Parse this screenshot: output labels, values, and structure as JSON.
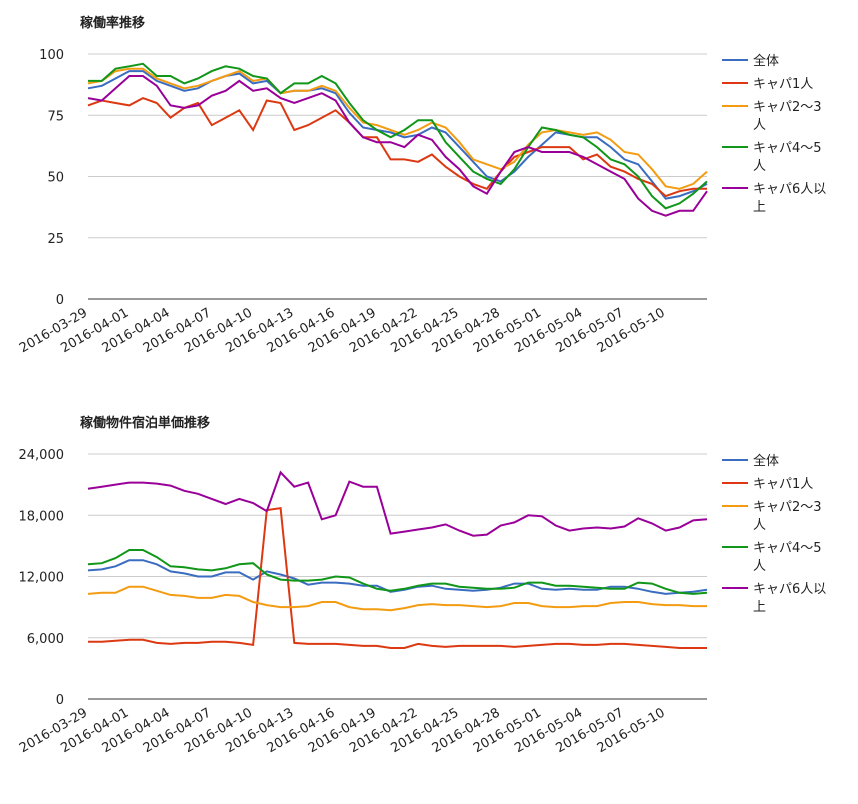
{
  "chart_data": [
    {
      "type": "line",
      "title": "稼働率推移",
      "x": [
        "2016-03-29",
        "2016-03-30",
        "2016-03-31",
        "2016-04-01",
        "2016-04-02",
        "2016-04-03",
        "2016-04-04",
        "2016-04-05",
        "2016-04-06",
        "2016-04-07",
        "2016-04-08",
        "2016-04-09",
        "2016-04-10",
        "2016-04-11",
        "2016-04-12",
        "2016-04-13",
        "2016-04-14",
        "2016-04-15",
        "2016-04-16",
        "2016-04-17",
        "2016-04-18",
        "2016-04-19",
        "2016-04-20",
        "2016-04-21",
        "2016-04-22",
        "2016-04-23",
        "2016-04-24",
        "2016-04-25",
        "2016-04-26",
        "2016-04-27",
        "2016-04-28",
        "2016-04-29",
        "2016-04-30",
        "2016-05-01",
        "2016-05-02",
        "2016-05-03",
        "2016-05-04",
        "2016-05-05",
        "2016-05-06",
        "2016-05-07",
        "2016-05-08",
        "2016-05-09",
        "2016-05-10",
        "2016-05-11",
        "2016-05-12",
        "2016-05-13"
      ],
      "xticks": [
        "2016-03-29",
        "2016-04-01",
        "2016-04-04",
        "2016-04-07",
        "2016-04-10",
        "2016-04-13",
        "2016-04-16",
        "2016-04-19",
        "2016-04-22",
        "2016-04-25",
        "2016-04-28",
        "2016-05-01",
        "2016-05-04",
        "2016-05-07",
        "2016-05-10"
      ],
      "ylim": [
        0,
        100
      ],
      "yticks": [
        0,
        25,
        50,
        75,
        100
      ],
      "grid": true,
      "series": [
        {
          "name": "全体",
          "color": "#3a6cc0",
          "values": [
            86,
            87,
            90,
            93,
            93,
            89,
            87,
            85,
            86,
            89,
            91,
            92,
            88,
            89,
            84,
            85,
            85,
            86,
            84,
            76,
            70,
            69,
            68,
            66,
            67,
            70,
            68,
            62,
            56,
            50,
            48,
            52,
            58,
            63,
            68,
            67,
            66,
            66,
            62,
            57,
            55,
            48,
            41,
            42,
            44,
            47
          ]
        },
        {
          "name": "キャパ1人",
          "color": "#dc3912",
          "values": [
            79,
            81,
            80,
            79,
            82,
            80,
            74,
            78,
            80,
            71,
            74,
            77,
            69,
            81,
            80,
            69,
            71,
            74,
            77,
            72,
            66,
            66,
            57,
            57,
            56,
            59,
            54,
            50,
            47,
            45,
            52,
            58,
            60,
            62,
            62,
            62,
            57,
            59,
            54,
            52,
            49,
            47,
            42,
            44,
            45,
            45
          ]
        },
        {
          "name": "キャパ2〜3人",
          "color": "#f39c12",
          "values": [
            88,
            89,
            93,
            94,
            94,
            90,
            88,
            86,
            87,
            89,
            91,
            93,
            89,
            90,
            84,
            85,
            85,
            87,
            85,
            78,
            72,
            71,
            69,
            67,
            69,
            72,
            70,
            64,
            57,
            55,
            53,
            56,
            63,
            68,
            69,
            68,
            67,
            68,
            65,
            60,
            59,
            53,
            46,
            45,
            47,
            52
          ]
        },
        {
          "name": "キャパ4〜5人",
          "color": "#109618",
          "values": [
            89,
            89,
            94,
            95,
            96,
            91,
            91,
            88,
            90,
            93,
            95,
            94,
            91,
            90,
            84,
            88,
            88,
            91,
            88,
            80,
            73,
            69,
            66,
            69,
            73,
            73,
            64,
            58,
            52,
            49,
            47,
            53,
            62,
            70,
            69,
            67,
            66,
            62,
            57,
            55,
            50,
            42,
            37,
            39,
            43,
            48
          ]
        },
        {
          "name": "キャパ6人以上",
          "color": "#990099",
          "values": [
            82,
            81,
            86,
            91,
            91,
            87,
            79,
            78,
            79,
            83,
            85,
            89,
            85,
            86,
            82,
            80,
            82,
            84,
            81,
            72,
            66,
            64,
            64,
            62,
            67,
            65,
            58,
            53,
            46,
            43,
            52,
            60,
            62,
            60,
            60,
            60,
            58,
            55,
            52,
            49,
            41,
            36,
            34,
            36,
            36,
            44
          ]
        }
      ]
    },
    {
      "type": "line",
      "title": "稼働物件宿泊単価推移",
      "x": [
        "2016-03-29",
        "2016-03-30",
        "2016-03-31",
        "2016-04-01",
        "2016-04-02",
        "2016-04-03",
        "2016-04-04",
        "2016-04-05",
        "2016-04-06",
        "2016-04-07",
        "2016-04-08",
        "2016-04-09",
        "2016-04-10",
        "2016-04-11",
        "2016-04-12",
        "2016-04-13",
        "2016-04-14",
        "2016-04-15",
        "2016-04-16",
        "2016-04-17",
        "2016-04-18",
        "2016-04-19",
        "2016-04-20",
        "2016-04-21",
        "2016-04-22",
        "2016-04-23",
        "2016-04-24",
        "2016-04-25",
        "2016-04-26",
        "2016-04-27",
        "2016-04-28",
        "2016-04-29",
        "2016-04-30",
        "2016-05-01",
        "2016-05-02",
        "2016-05-03",
        "2016-05-04",
        "2016-05-05",
        "2016-05-06",
        "2016-05-07",
        "2016-05-08",
        "2016-05-09",
        "2016-05-10",
        "2016-05-11",
        "2016-05-12",
        "2016-05-13"
      ],
      "xticks": [
        "2016-03-29",
        "2016-04-01",
        "2016-04-04",
        "2016-04-07",
        "2016-04-10",
        "2016-04-13",
        "2016-04-16",
        "2016-04-19",
        "2016-04-22",
        "2016-04-25",
        "2016-04-28",
        "2016-05-01",
        "2016-05-04",
        "2016-05-07",
        "2016-05-10"
      ],
      "ylim": [
        0,
        24000
      ],
      "yticks": [
        0,
        {
          "value": 6000,
          "label": "6,000"
        },
        {
          "value": 12000,
          "label": "12,000"
        },
        {
          "value": 18000,
          "label": "18,000"
        },
        {
          "value": 24000,
          "label": "24,000"
        }
      ],
      "grid": true,
      "series": [
        {
          "name": "全体",
          "color": "#3a6cc0",
          "values": [
            12600,
            12700,
            13000,
            13600,
            13600,
            13200,
            12500,
            12300,
            12000,
            12000,
            12400,
            12400,
            11700,
            12500,
            12200,
            11800,
            11200,
            11400,
            11400,
            11300,
            11100,
            11100,
            10500,
            10700,
            11000,
            11100,
            10800,
            10700,
            10600,
            10700,
            10900,
            11300,
            11300,
            10800,
            10700,
            10800,
            10700,
            10700,
            11000,
            11000,
            10800,
            10500,
            10300,
            10400,
            10500,
            10700
          ]
        },
        {
          "name": "キャパ1人",
          "color": "#dc3912",
          "values": [
            5600,
            5600,
            5700,
            5800,
            5800,
            5500,
            5400,
            5500,
            5500,
            5600,
            5600,
            5500,
            5300,
            18500,
            18700,
            5500,
            5400,
            5400,
            5400,
            5300,
            5200,
            5200,
            5000,
            5000,
            5400,
            5200,
            5100,
            5200,
            5200,
            5200,
            5200,
            5100,
            5200,
            5300,
            5400,
            5400,
            5300,
            5300,
            5400,
            5400,
            5300,
            5200,
            5100,
            5000,
            5000,
            5000
          ]
        },
        {
          "name": "キャパ2〜3人",
          "color": "#f39c12",
          "values": [
            10300,
            10400,
            10400,
            11000,
            11000,
            10600,
            10200,
            10100,
            9900,
            9900,
            10200,
            10100,
            9500,
            9200,
            9000,
            9000,
            9100,
            9500,
            9500,
            9000,
            8800,
            8800,
            8700,
            8900,
            9200,
            9300,
            9200,
            9200,
            9100,
            9000,
            9100,
            9400,
            9400,
            9100,
            9000,
            9000,
            9100,
            9100,
            9400,
            9500,
            9500,
            9300,
            9200,
            9200,
            9100,
            9100
          ]
        },
        {
          "name": "キャパ4〜5人",
          "color": "#109618",
          "values": [
            13200,
            13300,
            13800,
            14600,
            14600,
            13900,
            13000,
            12900,
            12700,
            12600,
            12800,
            13200,
            13300,
            12200,
            11700,
            11600,
            11600,
            11700,
            12000,
            11900,
            11300,
            10800,
            10600,
            10800,
            11100,
            11300,
            11300,
            11000,
            10900,
            10800,
            10800,
            10900,
            11400,
            11400,
            11100,
            11100,
            11000,
            10900,
            10800,
            10800,
            11400,
            11300,
            10800,
            10400,
            10300,
            10400
          ]
        },
        {
          "name": "キャパ6人以上",
          "color": "#990099",
          "values": [
            20600,
            20800,
            21000,
            21200,
            21200,
            21100,
            20900,
            20400,
            20100,
            19600,
            19100,
            19600,
            19200,
            18400,
            22200,
            20800,
            21200,
            17600,
            18000,
            21300,
            20800,
            20800,
            16200,
            16400,
            16600,
            16800,
            17100,
            16500,
            16000,
            16100,
            17000,
            17300,
            18000,
            17900,
            17000,
            16500,
            16700,
            16800,
            16700,
            16900,
            17700,
            17200,
            16500,
            16800,
            17500,
            17600
          ]
        }
      ]
    }
  ]
}
